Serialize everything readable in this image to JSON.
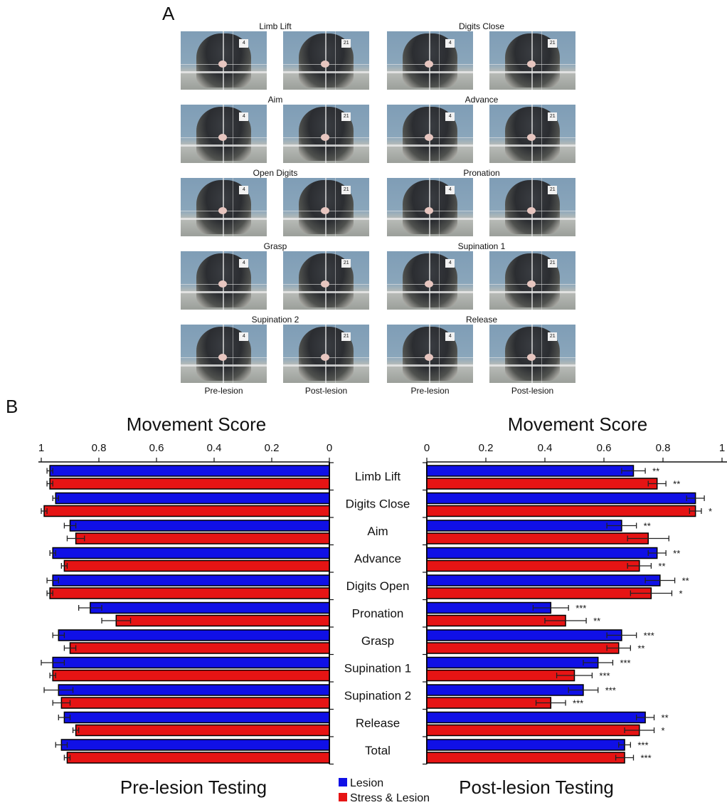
{
  "panel_a": {
    "letter": "A",
    "movements": [
      "Limb Lift",
      "Digits Close",
      "Aim",
      "Advance",
      "Open Digits",
      "Pronation",
      "Grasp",
      "Supination 1",
      "Supination 2",
      "Release"
    ],
    "photo_tags": {
      "pre": "4",
      "post": "21"
    },
    "conditions": [
      "Pre-lesion",
      "Post-lesion",
      "Pre-lesion",
      "Post-lesion"
    ]
  },
  "panel_b": {
    "letter": "B",
    "legend": [
      {
        "label": "Lesion",
        "color": "#1010e6"
      },
      {
        "label": "Stress & Lesion",
        "color": "#e61414"
      }
    ]
  },
  "chart_data": [
    {
      "type": "bar",
      "orientation": "horizontal",
      "axis_direction": "reversed",
      "title": "Movement Score",
      "xlabel": "Pre-lesion Testing",
      "xlim": [
        0,
        1
      ],
      "ticks": [
        "1",
        "0.8",
        "0.6",
        "0.4",
        "0.2",
        "0"
      ],
      "categories": [
        "Limb Lift",
        "Digits Close",
        "Aim",
        "Advance",
        "Digits Open",
        "Pronation",
        "Grasp",
        "Supination 1",
        "Supination 2",
        "Release",
        "Total"
      ],
      "series": [
        {
          "name": "Lesion",
          "color": "#1010e6",
          "values": [
            0.97,
            0.95,
            0.9,
            0.96,
            0.96,
            0.83,
            0.94,
            0.96,
            0.94,
            0.92,
            0.93
          ],
          "errors": [
            0.01,
            0.01,
            0.02,
            0.01,
            0.02,
            0.04,
            0.02,
            0.04,
            0.05,
            0.02,
            0.02
          ]
        },
        {
          "name": "Stress & Lesion",
          "color": "#e61414",
          "values": [
            0.97,
            0.99,
            0.88,
            0.92,
            0.97,
            0.74,
            0.9,
            0.96,
            0.93,
            0.88,
            0.91
          ],
          "errors": [
            0.01,
            0.01,
            0.03,
            0.01,
            0.01,
            0.05,
            0.02,
            0.01,
            0.03,
            0.01,
            0.01
          ]
        }
      ]
    },
    {
      "type": "bar",
      "orientation": "horizontal",
      "title": "Movement Score",
      "xlabel": "Post-lesion Testing",
      "xlim": [
        0,
        1
      ],
      "ticks": [
        "0",
        "0.2",
        "0.4",
        "0.6",
        "0.8",
        "1"
      ],
      "categories": [
        "Limb Lift",
        "Digits Close",
        "Aim",
        "Advance",
        "Digits Open",
        "Pronation",
        "Grasp",
        "Supination 1",
        "Supination 2",
        "Release",
        "Total"
      ],
      "series": [
        {
          "name": "Lesion",
          "color": "#1010e6",
          "values": [
            0.7,
            0.91,
            0.66,
            0.78,
            0.79,
            0.42,
            0.66,
            0.58,
            0.53,
            0.74,
            0.67
          ],
          "errors": [
            0.04,
            0.03,
            0.05,
            0.03,
            0.05,
            0.06,
            0.05,
            0.05,
            0.05,
            0.03,
            0.02
          ],
          "significance": [
            "**",
            "",
            "**",
            "**",
            "**",
            "***",
            "***",
            "***",
            "***",
            "**",
            "***"
          ]
        },
        {
          "name": "Stress & Lesion",
          "color": "#e61414",
          "values": [
            0.78,
            0.91,
            0.75,
            0.72,
            0.76,
            0.47,
            0.65,
            0.5,
            0.42,
            0.72,
            0.67
          ],
          "errors": [
            0.03,
            0.02,
            0.07,
            0.04,
            0.07,
            0.07,
            0.04,
            0.06,
            0.05,
            0.05,
            0.03
          ],
          "significance": [
            "**",
            "*",
            "",
            "**",
            "*",
            "**",
            "**",
            "***",
            "***",
            "*",
            "***"
          ]
        }
      ]
    }
  ]
}
